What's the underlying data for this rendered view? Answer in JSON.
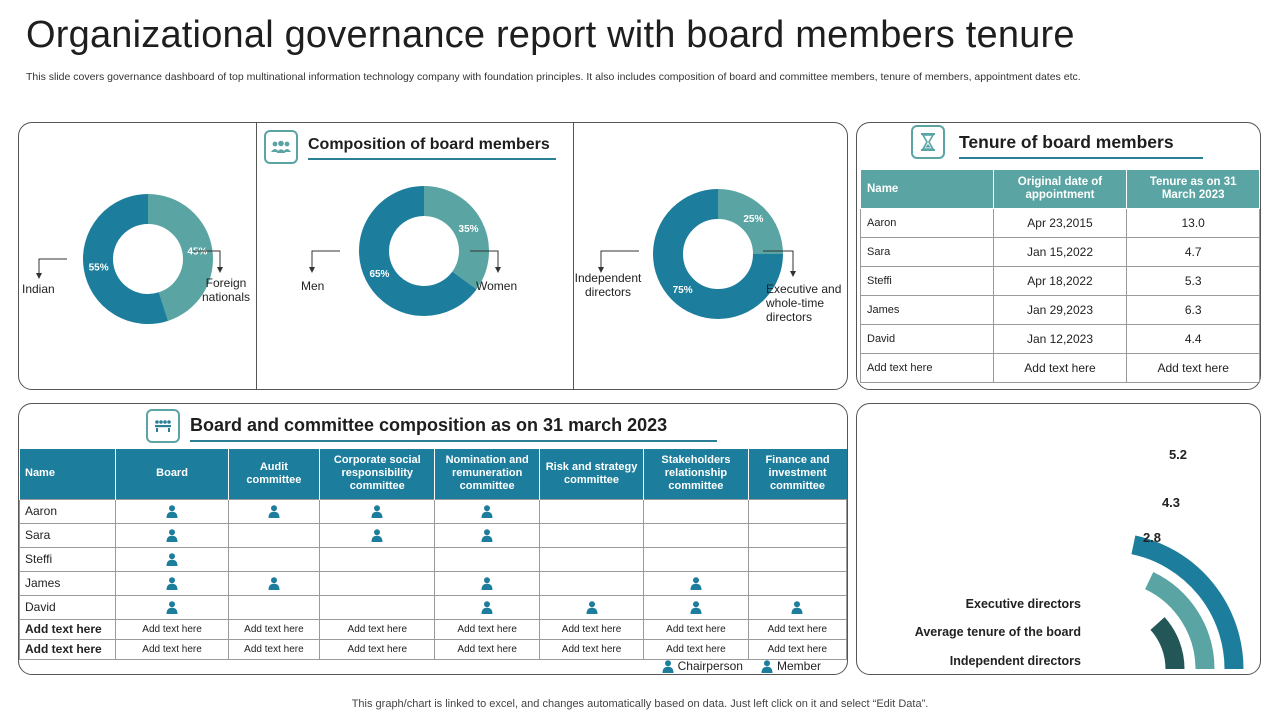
{
  "title": "Organizational governance report with board members tenure",
  "subtitle": "This slide covers governance dashboard of top multinational information technology company with foundation principles. It also includes composition of board and committee members, tenure of members, appointment dates  etc.",
  "footer": "This graph/chart is linked to excel,  and changes automatically based on data. Just left click on it and select “Edit Data”.",
  "composition": {
    "heading": "Composition of board members",
    "icon": "people-group-icon",
    "donuts": [
      {
        "left_label": "Indian",
        "right_label": "Foreign nationals",
        "left_pct": "55%",
        "right_pct": "45%",
        "left_value": 55,
        "right_value": 45
      },
      {
        "left_label": "Men",
        "right_label": "Women",
        "left_pct": "65%",
        "right_pct": "35%",
        "left_value": 65,
        "right_value": 35
      },
      {
        "left_label": "Independent directors",
        "right_label": "Executive and whole-time directors",
        "left_pct": "75%",
        "right_pct": "25%",
        "left_value": 75,
        "right_value": 25
      }
    ]
  },
  "tenure": {
    "heading": "Tenure of board members",
    "icon": "hourglass-icon",
    "columns": [
      "Name",
      "Original date of appointment",
      "Tenure as on 31 March 2023"
    ],
    "rows": [
      [
        "Aaron",
        "Apr 23,2015",
        "13.0"
      ],
      [
        "Sara",
        "Jan 15,2022",
        "4.7"
      ],
      [
        "Steffi",
        "Apr 18,2022",
        "5.3"
      ],
      [
        "James",
        "Jan 29,2023",
        "6.3"
      ],
      [
        "David",
        "Jan 12,2023",
        "4.4"
      ],
      [
        "Add text here",
        "Add text here",
        "Add text here"
      ]
    ]
  },
  "committee": {
    "heading": "Board and committee composition as on 31 march 2023",
    "icon": "meeting-icon",
    "columns": [
      "Name",
      "Board",
      "Audit committee",
      "Corporate social responsibility committee",
      "Nomination and remuneration committee",
      "Risk and strategy committee",
      "Stakeholders relationship committee",
      "Finance and investment committee"
    ],
    "rows": [
      {
        "name": "Aaron",
        "marks": [
          "member",
          "member",
          "member",
          "member",
          "",
          "",
          ""
        ]
      },
      {
        "name": "Sara",
        "marks": [
          "member",
          "",
          "member",
          "member",
          "",
          "",
          ""
        ]
      },
      {
        "name": "Steffi",
        "marks": [
          "member",
          "",
          "",
          "",
          "",
          "",
          ""
        ]
      },
      {
        "name": "James",
        "marks": [
          "member",
          "member",
          "",
          "member",
          "",
          "member",
          ""
        ]
      },
      {
        "name": "David",
        "marks": [
          "member",
          "",
          "",
          "member",
          "member",
          "member",
          "member"
        ]
      }
    ],
    "add_rows": [
      {
        "name": "Add text here",
        "cells": [
          "Add text here",
          "Add text here",
          "Add text here",
          "Add text here",
          "Add text here",
          "Add text here",
          "Add text here"
        ]
      },
      {
        "name": "Add text here",
        "cells": [
          "Add text here",
          "Add text here",
          "Add text here",
          "Add text here",
          "Add text here",
          "Add text here",
          "Add text here"
        ]
      }
    ],
    "legend": {
      "chairperson": "Chairperson",
      "member": "Member"
    }
  },
  "colors": {
    "dark_blue": "#1d7d9c",
    "teal": "#5aa5a3",
    "dark_teal": "#235656",
    "header_teal": "#5aa5a3"
  },
  "chart_data": {
    "type": "bar",
    "categories": [
      "Executive directors",
      "Average tenure of the board",
      "Independent directors"
    ],
    "values": [
      2.8,
      4.3,
      5.2
    ],
    "value_labels": [
      "2.8",
      "4.3",
      "5.2"
    ],
    "colors": [
      "#235656",
      "#5aa5a3",
      "#1d7d9c"
    ],
    "max": 6.0
  }
}
